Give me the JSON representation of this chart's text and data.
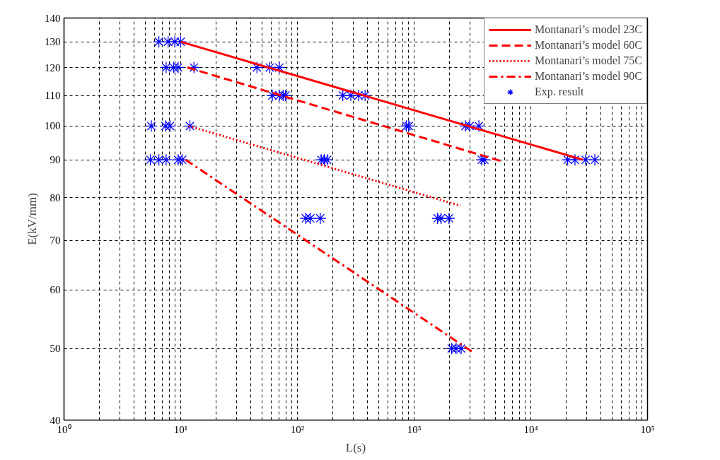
{
  "chart_data": {
    "type": "line",
    "xlabel": "L(s)",
    "ylabel": "E(kV/mm)",
    "log": "xy",
    "grid": true,
    "legend": "top right",
    "xlim": [
      1,
      100000
    ],
    "ylim": [
      40,
      140
    ],
    "xticks": [
      {
        "value": 1,
        "label": "10⁰"
      },
      {
        "value": 2,
        "label": null
      },
      {
        "value": 3,
        "label": null
      },
      {
        "value": 4,
        "label": null
      },
      {
        "value": 5,
        "label": null
      },
      {
        "value": 6,
        "label": null
      },
      {
        "value": 7,
        "label": null
      },
      {
        "value": 8,
        "label": null
      },
      {
        "value": 9,
        "label": null
      },
      {
        "value": 10,
        "label": "10¹"
      },
      {
        "value": 20,
        "label": null
      },
      {
        "value": 30,
        "label": null
      },
      {
        "value": 40,
        "label": null
      },
      {
        "value": 50,
        "label": null
      },
      {
        "value": 60,
        "label": null
      },
      {
        "value": 70,
        "label": null
      },
      {
        "value": 80,
        "label": null
      },
      {
        "value": 90,
        "label": null
      },
      {
        "value": 100,
        "label": "10²"
      },
      {
        "value": 200,
        "label": null
      },
      {
        "value": 300,
        "label": null
      },
      {
        "value": 400,
        "label": null
      },
      {
        "value": 500,
        "label": null
      },
      {
        "value": 600,
        "label": null
      },
      {
        "value": 700,
        "label": null
      },
      {
        "value": 800,
        "label": null
      },
      {
        "value": 900,
        "label": null
      },
      {
        "value": 1000,
        "label": "10³"
      },
      {
        "value": 2000,
        "label": null
      },
      {
        "value": 3000,
        "label": null
      },
      {
        "value": 4000,
        "label": null
      },
      {
        "value": 5000,
        "label": null
      },
      {
        "value": 6000,
        "label": null
      },
      {
        "value": 7000,
        "label": null
      },
      {
        "value": 8000,
        "label": null
      },
      {
        "value": 9000,
        "label": null
      },
      {
        "value": 10000,
        "label": "10⁴"
      },
      {
        "value": 20000,
        "label": null
      },
      {
        "value": 30000,
        "label": null
      },
      {
        "value": 40000,
        "label": null
      },
      {
        "value": 50000,
        "label": null
      },
      {
        "value": 60000,
        "label": null
      },
      {
        "value": 70000,
        "label": null
      },
      {
        "value": 80000,
        "label": null
      },
      {
        "value": 90000,
        "label": null
      },
      {
        "value": 100000,
        "label": "10⁵"
      }
    ],
    "yticks": [
      40,
      50,
      60,
      70,
      80,
      90,
      100,
      110,
      120,
      130,
      140
    ],
    "series": [
      {
        "name": "Montanari’s model 23C",
        "line_style": "solid",
        "color": "#ff0000",
        "x": [
          10,
          28000
        ],
        "values": [
          130,
          90
        ]
      },
      {
        "name": "Montanari’s model 60C",
        "line_style": "dashed",
        "color": "#ff0000",
        "x": [
          11.4,
          5500
        ],
        "values": [
          120,
          89.7
        ]
      },
      {
        "name": "Montanari’s model 75C",
        "line_style": "dotted",
        "color": "#ff0000",
        "x": [
          11.7,
          2500
        ],
        "values": [
          100,
          78
        ]
      },
      {
        "name": "Montanari’s model 90C",
        "line_style": "dashdot",
        "color": "#ff0000",
        "x": [
          11,
          3200
        ],
        "values": [
          90,
          49.4
        ]
      },
      {
        "name": "Exp. result",
        "type": "scatter",
        "marker": "cross",
        "color": "#0000ff",
        "x": [
          6.5,
          7.8,
          8.9,
          10,
          7.5,
          8.7,
          9.5,
          13,
          45,
          58,
          70,
          61,
          70,
          75.5,
          79,
          245,
          287,
          334,
          380,
          5.6,
          7.4,
          8.1,
          12,
          860,
          900,
          2750,
          2990,
          3590,
          5.5,
          6.5,
          7.5,
          9.5,
          10.3,
          160,
          170,
          180,
          3800,
          4000,
          20700,
          23900,
          29500,
          35400,
          118,
          129,
          157,
          1590,
          1700,
          1990,
          2100,
          2290,
          2530
        ],
        "values": [
          130,
          130,
          130,
          130,
          120,
          120,
          120,
          120,
          120,
          120,
          120,
          110,
          110,
          110,
          110,
          110,
          110,
          110,
          110,
          100,
          100,
          100,
          100,
          100,
          100,
          100,
          100,
          100,
          90,
          90,
          90,
          90,
          90,
          90,
          90,
          90,
          90,
          90,
          90,
          90,
          90,
          90,
          75,
          75,
          75,
          75,
          75,
          75,
          50,
          50,
          50
        ]
      }
    ]
  }
}
